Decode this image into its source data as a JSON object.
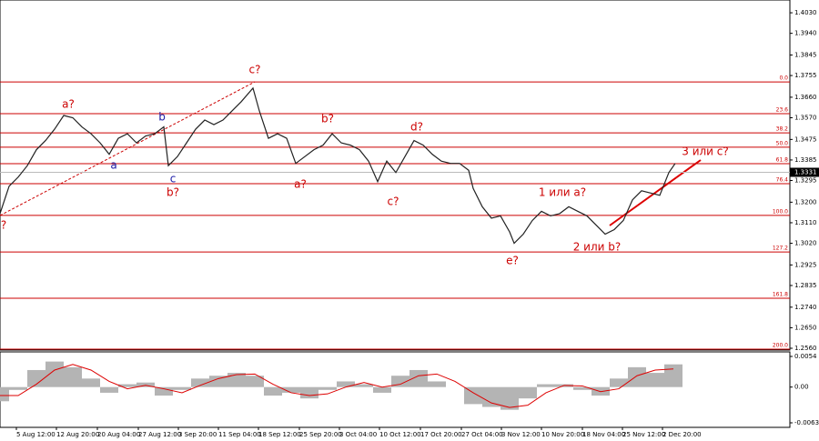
{
  "chart_data": [
    {
      "type": "line",
      "xlim": [
        0,
        868
      ],
      "ylim": [
        1.2552,
        1.4086
      ],
      "yticks": [
        {
          "value": 1.403,
          "label": "1.4030"
        },
        {
          "value": 1.394,
          "label": "1.3940"
        },
        {
          "value": 1.3845,
          "label": "1.3845"
        },
        {
          "value": 1.3755,
          "label": "1.3755"
        },
        {
          "value": 1.366,
          "label": "1.3660"
        },
        {
          "value": 1.357,
          "label": "1.3570"
        },
        {
          "value": 1.3475,
          "label": "1.3475"
        },
        {
          "value": 1.3385,
          "label": "1.3385"
        },
        {
          "value": 1.3295,
          "label": "1.3295"
        },
        {
          "value": 1.32,
          "label": "1.3200"
        },
        {
          "value": 1.311,
          "label": "1.3110"
        },
        {
          "value": 1.302,
          "label": "1.3020"
        },
        {
          "value": 1.2925,
          "label": "1.2925"
        },
        {
          "value": 1.2835,
          "label": "1.2835"
        },
        {
          "value": 1.274,
          "label": "1.2740"
        },
        {
          "value": 1.265,
          "label": "1.2650"
        },
        {
          "value": 1.256,
          "label": "1.2560"
        }
      ],
      "series": [
        {
          "color": "#222222",
          "x": [
            0,
            10,
            20,
            30,
            40,
            50,
            60,
            70,
            80,
            90,
            100,
            110,
            120,
            130,
            140,
            150,
            160,
            170,
            180,
            185,
            195,
            205,
            215,
            225,
            235,
            245,
            255,
            265,
            278,
            285,
            295,
            305,
            315,
            325,
            335,
            345,
            355,
            365,
            375,
            385,
            395,
            405,
            415,
            425,
            435,
            445,
            455,
            465,
            475,
            485,
            495,
            505,
            515,
            520,
            530,
            540,
            550,
            560,
            565,
            575,
            585,
            595,
            605,
            615,
            625,
            635,
            645,
            655,
            665,
            675,
            685,
            695,
            705,
            715,
            725,
            735,
            742
          ],
          "values": [
            1.315,
            1.327,
            1.331,
            1.336,
            1.343,
            1.347,
            1.352,
            1.358,
            1.357,
            1.353,
            1.35,
            1.346,
            1.341,
            1.348,
            1.35,
            1.346,
            1.349,
            1.35,
            1.353,
            1.336,
            1.34,
            1.346,
            1.352,
            1.356,
            1.354,
            1.356,
            1.36,
            1.364,
            1.37,
            1.36,
            1.348,
            1.35,
            1.348,
            1.337,
            1.34,
            1.343,
            1.345,
            1.35,
            1.346,
            1.345,
            1.343,
            1.338,
            1.329,
            1.338,
            1.333,
            1.34,
            1.347,
            1.345,
            1.341,
            1.338,
            1.337,
            1.337,
            1.334,
            1.326,
            1.318,
            1.313,
            1.314,
            1.307,
            1.302,
            1.306,
            1.312,
            1.316,
            1.314,
            1.315,
            1.318,
            1.316,
            1.314,
            1.31,
            1.306,
            1.308,
            1.312,
            1.321,
            1.325,
            1.324,
            1.323,
            1.333,
            1.337
          ]
        }
      ],
      "fib_color": "#cc0000",
      "fib_levels": [
        {
          "label": "0.0",
          "value": 1.3727
        },
        {
          "label": "23.6",
          "value": 1.3588
        },
        {
          "label": "38.2",
          "value": 1.3504
        },
        {
          "label": "50.0",
          "value": 1.3441
        },
        {
          "label": "61.8",
          "value": 1.3369
        },
        {
          "label": "76.4",
          "value": 1.3281
        },
        {
          "label": "100.0",
          "value": 1.3142
        },
        {
          "label": "127.2",
          "value": 1.2982
        },
        {
          "label": "161.8",
          "value": 1.2779
        },
        {
          "label": "200.0",
          "value": 1.2556
        }
      ],
      "last_price": 1.3331,
      "annotations": [
        {
          "text": "?",
          "color": "#cc0000"
        },
        {
          "text": "a?",
          "color": "#cc0000"
        },
        {
          "text": "c?",
          "color": "#cc0000"
        },
        {
          "text": "b",
          "color": "#1a1aa6"
        },
        {
          "text": "a",
          "color": "#1a1aa6"
        },
        {
          "text": "c",
          "color": "#1a1aa6"
        },
        {
          "text": "b?",
          "color": "#cc0000"
        },
        {
          "text": "b?",
          "color": "#cc0000"
        },
        {
          "text": "a?",
          "color": "#cc0000"
        },
        {
          "text": "d?",
          "color": "#cc0000"
        },
        {
          "text": "c?",
          "color": "#cc0000"
        },
        {
          "text": "e?",
          "color": "#cc0000"
        },
        {
          "text": "1 или а?",
          "color": "#cc0000"
        },
        {
          "text": "2 или b?",
          "color": "#cc0000"
        },
        {
          "text": "3 или с?",
          "color": "#cc0000"
        }
      ]
    },
    {
      "type": "histogram",
      "xlim": [
        0,
        868
      ],
      "ylim": [
        -0.0071,
        0.0062
      ],
      "yticks": [
        0.0054,
        {
          "value": 0,
          "label": "0.00"
        },
        -0.0063
      ],
      "xticks": [
        {
          "value": 18,
          "label": "5 Aug 12:00"
        },
        {
          "value": 62,
          "label": "12 Aug 20:00"
        },
        {
          "value": 107,
          "label": "20 Aug 04:00"
        },
        {
          "value": 152,
          "label": "27 Aug 12:00"
        },
        {
          "value": 196,
          "label": "3 Sep 20:00"
        },
        {
          "value": 240,
          "label": "11 Sep 04:00"
        },
        {
          "value": 284,
          "label": "18 Sep 12:00"
        },
        {
          "value": 329,
          "label": "25 Sep 20:00"
        },
        {
          "value": 373,
          "label": "3 Oct 04:00"
        },
        {
          "value": 417,
          "label": "10 Oct 12:00"
        },
        {
          "value": 462,
          "label": "17 Oct 20:00"
        },
        {
          "value": 507,
          "label": "27 Oct 04:00"
        },
        {
          "value": 551,
          "label": "3 Nov 12:00"
        },
        {
          "value": 595,
          "label": "10 Nov 20:00"
        },
        {
          "value": 640,
          "label": "18 Nov 04:00"
        },
        {
          "value": 684,
          "label": "25 Nov 12:00"
        },
        {
          "value": 728,
          "label": "2 Dec 20:00"
        }
      ],
      "x": [
        0,
        20,
        40,
        60,
        80,
        100,
        120,
        140,
        160,
        180,
        200,
        220,
        240,
        260,
        280,
        300,
        320,
        340,
        360,
        380,
        400,
        420,
        440,
        460,
        480,
        500,
        520,
        540,
        560,
        580,
        600,
        620,
        640,
        660,
        680,
        700,
        720,
        740
      ],
      "series": [
        {
          "color": "#b4b4b4",
          "values": [
            -0.0025,
            -0.0005,
            0.003,
            0.0045,
            0.0035,
            0.0015,
            -0.001,
            0.0005,
            0.0008,
            -0.0015,
            -0.0005,
            0.0015,
            0.002,
            0.0025,
            0.002,
            -0.0015,
            -0.001,
            -0.002,
            -0.0005,
            0.001,
            0.0005,
            -0.001,
            0.002,
            0.003,
            0.001,
            0,
            -0.003,
            -0.0035,
            -0.004,
            -0.002,
            0.0005,
            0.0005,
            -0.0005,
            -0.0015,
            0.0015,
            0.0035,
            0.0025,
            0.004
          ]
        },
        {
          "color": "#dd0000",
          "values": [
            -0.0015,
            -0.0015,
            0.0005,
            0.003,
            0.004,
            0.003,
            0.001,
            -0.0003,
            0.0003,
            -0.0003,
            -0.001,
            0.0003,
            0.0015,
            0.0022,
            0.0023,
            0.0005,
            -0.001,
            -0.0015,
            -0.0012,
            0,
            0.0008,
            0,
            0.0005,
            0.002,
            0.0023,
            0.001,
            -0.001,
            -0.0028,
            -0.0036,
            -0.0032,
            -0.001,
            0.0003,
            0.0002,
            -0.0008,
            -0.0003,
            0.002,
            0.003,
            0.0032
          ]
        }
      ]
    }
  ]
}
